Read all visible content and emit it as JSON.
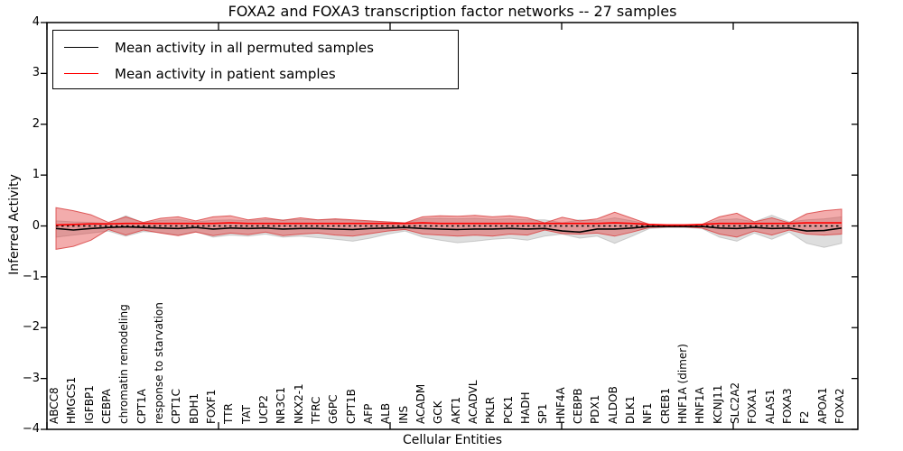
{
  "legend": {
    "items": [
      {
        "label": "Mean activity in all permuted samples",
        "color": "#000000"
      },
      {
        "label": "Mean activity in patient samples",
        "color": "#ff0000"
      }
    ]
  },
  "chart_data": {
    "type": "area",
    "title": "FOXA2 and FOXA3 transcription factor networks -- 27 samples",
    "xlabel": "Cellular Entities",
    "ylabel": "Inferred Activity",
    "ylim": [
      -4,
      4
    ],
    "yticks": [
      4,
      3,
      2,
      1,
      0,
      -1,
      -2,
      -3,
      -4
    ],
    "ytick_labels": [
      "4",
      "3",
      "2",
      "1",
      "0",
      "−1",
      "−2",
      "−3",
      "−4"
    ],
    "grid": false,
    "legend_position": "upper left",
    "colors": {
      "permuted_line": "#000000",
      "permuted_band": "#888888",
      "patient_line": "#ff0000",
      "patient_band": "#e03030",
      "reference_line": "#000000"
    },
    "categories": [
      "ABCC8",
      "HMGCS1",
      "IGFBP1",
      "CEBPA",
      "chromatin remodeling",
      "CPT1A",
      "response to starvation",
      "CPT1C",
      "BDH1",
      "FOXF1",
      "TTR",
      "TAT",
      "UCP2",
      "NR3C1",
      "NKX2-1",
      "TFRC",
      "G6PC",
      "CPT1B",
      "AFP",
      "ALB",
      "INS",
      "ACADM",
      "GCK",
      "AKT1",
      "ACADVL",
      "PKLR",
      "PCK1",
      "HADH",
      "SP1",
      "HNF4A",
      "CEBPB",
      "PDX1",
      "ALDOB",
      "DLK1",
      "NF1",
      "CREB1",
      "HNF1A (dimer)",
      "HNF1A",
      "KCNJ11",
      "SLC2A2",
      "FOXA1",
      "ALAS1",
      "FOXA3",
      "F2",
      "APOA1",
      "FOXA2"
    ],
    "series": [
      {
        "name": "Mean activity in all permuted samples",
        "role": "permuted",
        "mean": [
          -0.05,
          -0.08,
          -0.05,
          -0.03,
          -0.02,
          -0.03,
          -0.04,
          -0.05,
          -0.03,
          -0.06,
          -0.04,
          -0.05,
          -0.04,
          -0.06,
          -0.05,
          -0.05,
          -0.06,
          -0.07,
          -0.05,
          -0.04,
          -0.03,
          -0.05,
          -0.06,
          -0.07,
          -0.06,
          -0.06,
          -0.05,
          -0.06,
          -0.05,
          -0.1,
          -0.12,
          -0.06,
          -0.06,
          -0.04,
          -0.01,
          -0.01,
          -0.01,
          -0.01,
          -0.04,
          -0.05,
          -0.03,
          -0.05,
          -0.04,
          -0.1,
          -0.09,
          -0.04
        ],
        "upper": [
          0.1,
          0.08,
          0.07,
          0.05,
          0.2,
          0.06,
          0.11,
          0.13,
          0.08,
          0.11,
          0.12,
          0.1,
          0.13,
          0.12,
          0.13,
          0.12,
          0.13,
          0.1,
          0.09,
          0.08,
          0.06,
          0.14,
          0.15,
          0.14,
          0.15,
          0.13,
          0.14,
          0.12,
          0.12,
          0.06,
          0.12,
          0.1,
          0.16,
          0.1,
          0.03,
          0.02,
          0.02,
          0.03,
          0.12,
          0.14,
          0.08,
          0.21,
          0.08,
          0.12,
          0.14,
          0.18
        ],
        "lower": [
          -0.22,
          -0.18,
          -0.14,
          -0.1,
          -0.2,
          -0.11,
          -0.13,
          -0.18,
          -0.11,
          -0.22,
          -0.18,
          -0.2,
          -0.16,
          -0.22,
          -0.2,
          -0.23,
          -0.26,
          -0.3,
          -0.24,
          -0.16,
          -0.1,
          -0.22,
          -0.28,
          -0.33,
          -0.3,
          -0.26,
          -0.24,
          -0.28,
          -0.2,
          -0.16,
          -0.24,
          -0.2,
          -0.34,
          -0.2,
          -0.05,
          -0.03,
          -0.03,
          -0.05,
          -0.22,
          -0.3,
          -0.14,
          -0.26,
          -0.12,
          -0.34,
          -0.42,
          -0.34
        ]
      },
      {
        "name": "Mean activity in patient samples",
        "role": "patient",
        "mean": [
          0.02,
          0.03,
          0.04,
          0.04,
          0.05,
          0.05,
          0.05,
          0.05,
          0.05,
          0.05,
          0.06,
          0.05,
          0.05,
          0.05,
          0.05,
          0.05,
          0.05,
          0.05,
          0.05,
          0.05,
          0.05,
          0.06,
          0.05,
          0.05,
          0.05,
          0.05,
          0.05,
          0.05,
          0.05,
          0.05,
          0.05,
          0.05,
          0.06,
          0.05,
          0.03,
          0.02,
          0.02,
          0.03,
          0.05,
          0.05,
          0.05,
          0.05,
          0.05,
          0.06,
          0.06,
          0.06
        ],
        "upper": [
          0.36,
          0.3,
          0.22,
          0.07,
          0.18,
          0.07,
          0.15,
          0.18,
          0.1,
          0.18,
          0.2,
          0.12,
          0.16,
          0.11,
          0.16,
          0.12,
          0.14,
          0.12,
          0.1,
          0.08,
          0.06,
          0.18,
          0.2,
          0.19,
          0.21,
          0.18,
          0.2,
          0.16,
          0.06,
          0.17,
          0.1,
          0.14,
          0.27,
          0.15,
          0.03,
          0.02,
          0.02,
          0.03,
          0.18,
          0.25,
          0.08,
          0.16,
          0.06,
          0.24,
          0.3,
          0.33
        ],
        "lower": [
          -0.46,
          -0.4,
          -0.28,
          -0.07,
          -0.18,
          -0.08,
          -0.14,
          -0.19,
          -0.12,
          -0.19,
          -0.14,
          -0.17,
          -0.12,
          -0.19,
          -0.16,
          -0.14,
          -0.18,
          -0.2,
          -0.15,
          -0.1,
          -0.07,
          -0.16,
          -0.18,
          -0.2,
          -0.18,
          -0.2,
          -0.16,
          -0.18,
          -0.08,
          -0.15,
          -0.16,
          -0.14,
          -0.2,
          -0.12,
          -0.03,
          -0.02,
          -0.02,
          -0.04,
          -0.16,
          -0.22,
          -0.1,
          -0.18,
          -0.08,
          -0.16,
          -0.18,
          -0.16
        ]
      }
    ],
    "reference_line": {
      "value": 0,
      "style": "dotted",
      "color": "#000000"
    }
  }
}
